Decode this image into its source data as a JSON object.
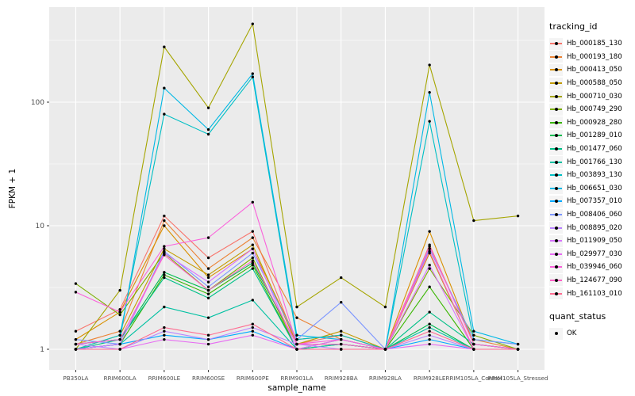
{
  "style": {
    "panel_bg": "#EBEBEB",
    "grid_color": "#FFFFFF",
    "tick_color": "#333333",
    "tick_label_color": "#4D4D4D",
    "point_color": "#000000",
    "legend_key_bg": "#F4F4F4"
  },
  "chart_data": {
    "type": "line",
    "title": "",
    "xlabel": "sample_name",
    "ylabel": "FPKM + 1",
    "y_scale": "log10",
    "y_ticks": [
      1,
      10,
      100
    ],
    "y_minor_ticks": [
      3.162,
      31.62,
      316.2
    ],
    "ylim": [
      0.68,
      580
    ],
    "grid": true,
    "legend_position": "right",
    "categories": [
      "PB350LA",
      "RRIM600LA",
      "RRIM600LE",
      "RRIM600SE",
      "RRIM600PE",
      "RRIM901LA",
      "RRIM928BA",
      "RRIM928LA",
      "RRIM928LE",
      "RRIM105LA_Control",
      "RRIM105LA_Stressed"
    ],
    "series": [
      {
        "name": "Hb_000185_130",
        "color": "#F8766D",
        "values": [
          1.4,
          2.1,
          12,
          5.5,
          9,
          1.1,
          1.3,
          1,
          7,
          1.1,
          1
        ]
      },
      {
        "name": "Hb_000193_180",
        "color": "#EB8335",
        "values": [
          1.1,
          1.4,
          11,
          4.5,
          8,
          1.8,
          1.2,
          1,
          6.5,
          1.2,
          1
        ]
      },
      {
        "name": "Hb_000413_050",
        "color": "#D99000",
        "values": [
          1.2,
          2.0,
          10,
          3.8,
          6.5,
          1.2,
          1.3,
          1,
          9,
          1.1,
          1
        ]
      },
      {
        "name": "Hb_000588_050",
        "color": "#C29B00",
        "values": [
          1.0,
          1.3,
          6.5,
          4.0,
          7,
          1.1,
          1.4,
          1,
          6,
          1.0,
          1
        ]
      },
      {
        "name": "Hb_000710_030",
        "color": "#A5A500",
        "values": [
          1.0,
          3.0,
          280,
          90,
          430,
          2.2,
          3.8,
          2.2,
          200,
          11,
          12
        ]
      },
      {
        "name": "Hb_000749_290",
        "color": "#7CAE00",
        "values": [
          3.4,
          1.9,
          6.0,
          3.0,
          5.5,
          1.0,
          1.2,
          1,
          4.5,
          1.3,
          1
        ]
      },
      {
        "name": "Hb_000928_280",
        "color": "#39B600",
        "values": [
          1.0,
          1.1,
          4.0,
          2.8,
          4.8,
          1.0,
          1.1,
          1,
          3.2,
          1.0,
          1
        ]
      },
      {
        "name": "Hb_001289_010",
        "color": "#00BC51",
        "values": [
          1.1,
          1.2,
          4.2,
          3.0,
          5.0,
          1.1,
          1.1,
          1,
          1.6,
          1.0,
          1
        ]
      },
      {
        "name": "Hb_001477_060",
        "color": "#00C087",
        "values": [
          1.0,
          1.2,
          3.8,
          2.6,
          4.5,
          1.0,
          1.0,
          1,
          2.0,
          1.1,
          1
        ]
      },
      {
        "name": "Hb_001766_130",
        "color": "#00C1A2",
        "values": [
          1.0,
          1.1,
          2.2,
          1.8,
          2.5,
          1.0,
          1.1,
          1,
          1.5,
          1.0,
          1
        ]
      },
      {
        "name": "Hb_003893_130",
        "color": "#00BFC4",
        "values": [
          1.0,
          1.3,
          80,
          55,
          160,
          1.2,
          1.3,
          1,
          70,
          1.2,
          1.1
        ]
      },
      {
        "name": "Hb_006651_030",
        "color": "#00B8E5",
        "values": [
          1.1,
          1.2,
          130,
          60,
          170,
          1.3,
          1.2,
          1,
          120,
          1.4,
          1.1
        ]
      },
      {
        "name": "Hb_007357_010",
        "color": "#00A9FF",
        "values": [
          1.0,
          1.1,
          1.3,
          1.2,
          1.4,
          1.0,
          1.0,
          1,
          1.2,
          1.0,
          1
        ]
      },
      {
        "name": "Hb_008406_060",
        "color": "#7C96FF",
        "values": [
          1.2,
          1.1,
          6.2,
          3.2,
          6.0,
          1.2,
          2.4,
          1,
          6.5,
          1.2,
          1.1
        ]
      },
      {
        "name": "Hb_008895_020",
        "color": "#B983FF",
        "values": [
          1.1,
          1.0,
          1.4,
          1.2,
          1.5,
          1.1,
          1.0,
          1,
          1.3,
          1.0,
          1
        ]
      },
      {
        "name": "Hb_011909_050",
        "color": "#D874FD",
        "values": [
          1.0,
          1.1,
          6.0,
          3.5,
          6.5,
          1.0,
          1.2,
          1,
          4.8,
          1.0,
          1
        ]
      },
      {
        "name": "Hb_029977_030",
        "color": "#E76BF3",
        "values": [
          1.0,
          1.0,
          1.2,
          1.1,
          1.3,
          1.0,
          1.0,
          1,
          1.1,
          1.0,
          1
        ]
      },
      {
        "name": "Hb_039946_060",
        "color": "#FA62DB",
        "values": [
          2.9,
          2.0,
          6.8,
          8.0,
          15.5,
          1.1,
          1.2,
          1,
          6.8,
          1.1,
          1
        ]
      },
      {
        "name": "Hb_124677_090",
        "color": "#FF61C7",
        "values": [
          1.1,
          1.2,
          5.8,
          3.0,
          5.2,
          1.1,
          1.1,
          1,
          6.2,
          1.0,
          1
        ]
      },
      {
        "name": "Hb_161103_010",
        "color": "#FF6C91",
        "values": [
          1.0,
          1.0,
          1.5,
          1.3,
          1.6,
          1.0,
          1.0,
          1,
          1.4,
          1.0,
          1
        ]
      }
    ],
    "legend": {
      "tracking_title": "tracking_id",
      "quant_title": "quant_status",
      "quant_items": [
        {
          "label": "OK"
        }
      ]
    }
  }
}
